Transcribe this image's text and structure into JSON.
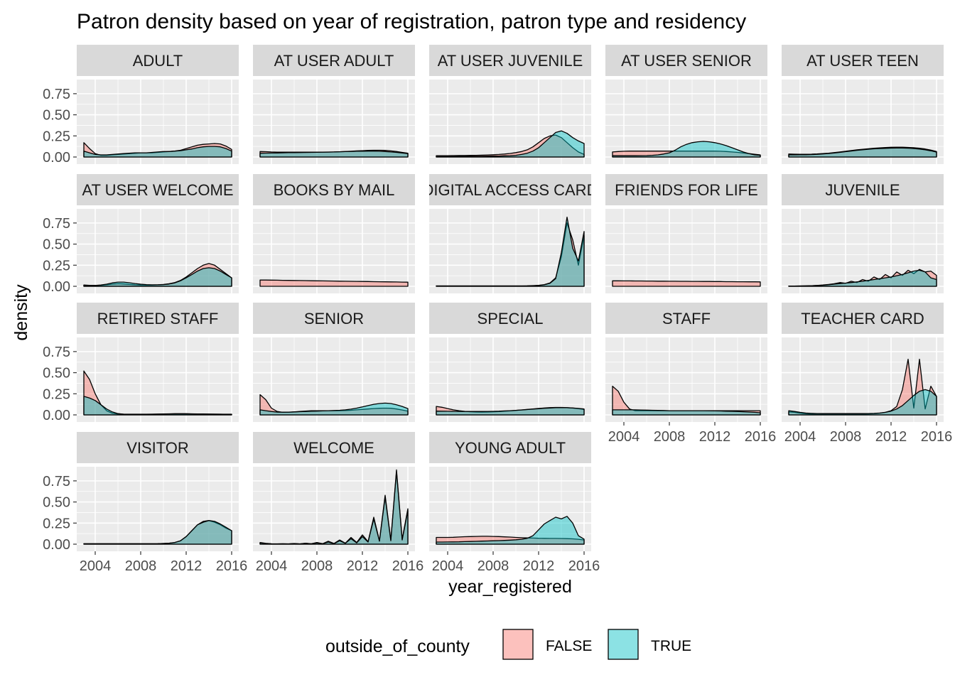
{
  "chart_data": {
    "type": "area",
    "title": "Patron density based on year of registration, patron type and residency",
    "xlabel": "year_registered",
    "ylabel": "density",
    "x_domain": [
      2003,
      2016
    ],
    "ylim": [
      0,
      0.85
    ],
    "x_ticks": [
      2004,
      2008,
      2012,
      2016
    ],
    "x_tick_labels": [
      "2004",
      "2008",
      "2012",
      "2016"
    ],
    "y_ticks": [
      0,
      0.25,
      0.5,
      0.75
    ],
    "y_tick_labels": [
      "0.00",
      "0.25",
      "0.50",
      "0.75"
    ],
    "grid": true,
    "legend": {
      "title": "outside_of_county",
      "position": "bottom",
      "entries": [
        {
          "label": "FALSE",
          "color": "#F8766D"
        },
        {
          "label": "TRUE",
          "color": "#00BFC4"
        }
      ]
    },
    "colors": {
      "FALSE": "#F8766D",
      "TRUE": "#00BFC4",
      "outline": "#000000",
      "panel": "#EBEBEB",
      "strip": "#D9D9D9"
    },
    "fill_alpha": 0.45,
    "x": [
      2003,
      2003.5,
      2004,
      2004.5,
      2005,
      2005.5,
      2006,
      2006.5,
      2007,
      2007.5,
      2008,
      2008.5,
      2009,
      2009.5,
      2010,
      2010.5,
      2011,
      2011.5,
      2012,
      2012.5,
      2013,
      2013.5,
      2014,
      2014.5,
      2015,
      2015.5,
      2016
    ],
    "panels": [
      {
        "label": "ADULT",
        "false": [
          0.17,
          0.1,
          0.04,
          0.02,
          0.02,
          0.025,
          0.03,
          0.035,
          0.04,
          0.045,
          0.05,
          0.05,
          0.05,
          0.055,
          0.06,
          0.065,
          0.07,
          0.08,
          0.1,
          0.12,
          0.14,
          0.15,
          0.155,
          0.16,
          0.155,
          0.13,
          0.09
        ],
        "true": [
          0.07,
          0.05,
          0.03,
          0.025,
          0.025,
          0.03,
          0.035,
          0.04,
          0.045,
          0.05,
          0.05,
          0.05,
          0.055,
          0.06,
          0.065,
          0.065,
          0.07,
          0.075,
          0.085,
          0.095,
          0.11,
          0.12,
          0.125,
          0.125,
          0.12,
          0.1,
          0.07
        ]
      },
      {
        "label": "AT USER ADULT",
        "false": [
          0.065,
          0.063,
          0.06,
          0.058,
          0.057,
          0.057,
          0.058,
          0.058,
          0.057,
          0.057,
          0.058,
          0.058,
          0.059,
          0.06,
          0.062,
          0.065,
          0.068,
          0.072,
          0.075,
          0.078,
          0.08,
          0.08,
          0.078,
          0.072,
          0.065,
          0.055,
          0.045
        ],
        "true": [
          0.045,
          0.046,
          0.047,
          0.048,
          0.05,
          0.051,
          0.052,
          0.053,
          0.054,
          0.055,
          0.056,
          0.057,
          0.058,
          0.06,
          0.062,
          0.064,
          0.066,
          0.068,
          0.069,
          0.07,
          0.07,
          0.068,
          0.065,
          0.06,
          0.055,
          0.048,
          0.04
        ]
      },
      {
        "label": "AT USER JUVENILE",
        "false": [
          0.015,
          0.015,
          0.016,
          0.017,
          0.018,
          0.018,
          0.019,
          0.02,
          0.022,
          0.024,
          0.027,
          0.03,
          0.035,
          0.042,
          0.052,
          0.065,
          0.085,
          0.12,
          0.17,
          0.22,
          0.25,
          0.26,
          0.23,
          0.17,
          0.11,
          0.06,
          0.03
        ],
        "true": [
          0.005,
          0.005,
          0.006,
          0.006,
          0.007,
          0.007,
          0.008,
          0.008,
          0.009,
          0.01,
          0.011,
          0.012,
          0.014,
          0.016,
          0.02,
          0.03,
          0.045,
          0.07,
          0.11,
          0.17,
          0.23,
          0.29,
          0.31,
          0.28,
          0.23,
          0.19,
          0.16
        ]
      },
      {
        "label": "AT USER SENIOR",
        "false": [
          0.06,
          0.065,
          0.068,
          0.07,
          0.07,
          0.07,
          0.07,
          0.07,
          0.07,
          0.07,
          0.07,
          0.07,
          0.07,
          0.07,
          0.07,
          0.07,
          0.07,
          0.07,
          0.07,
          0.068,
          0.065,
          0.06,
          0.055,
          0.048,
          0.04,
          0.033,
          0.025
        ],
        "true": [
          0.015,
          0.015,
          0.015,
          0.015,
          0.015,
          0.016,
          0.017,
          0.02,
          0.025,
          0.035,
          0.05,
          0.08,
          0.12,
          0.15,
          0.17,
          0.18,
          0.185,
          0.18,
          0.17,
          0.155,
          0.135,
          0.11,
          0.085,
          0.06,
          0.04,
          0.025,
          0.02
        ]
      },
      {
        "label": "AT USER TEEN",
        "false": [
          0.035,
          0.034,
          0.033,
          0.033,
          0.034,
          0.036,
          0.04,
          0.045,
          0.052,
          0.06,
          0.068,
          0.077,
          0.085,
          0.092,
          0.098,
          0.104,
          0.108,
          0.112,
          0.115,
          0.116,
          0.116,
          0.114,
          0.11,
          0.104,
          0.095,
          0.082,
          0.065
        ],
        "true": [
          0.025,
          0.025,
          0.026,
          0.027,
          0.029,
          0.032,
          0.036,
          0.041,
          0.048,
          0.055,
          0.063,
          0.071,
          0.079,
          0.086,
          0.092,
          0.097,
          0.1,
          0.103,
          0.105,
          0.106,
          0.106,
          0.104,
          0.1,
          0.094,
          0.085,
          0.073,
          0.058
        ]
      },
      {
        "label": "AT USER WELCOME",
        "false": [
          0.015,
          0.012,
          0.01,
          0.012,
          0.018,
          0.025,
          0.03,
          0.028,
          0.022,
          0.018,
          0.015,
          0.014,
          0.015,
          0.018,
          0.022,
          0.03,
          0.045,
          0.07,
          0.11,
          0.16,
          0.21,
          0.25,
          0.27,
          0.25,
          0.2,
          0.15,
          0.1
        ],
        "true": [
          0.01,
          0.01,
          0.01,
          0.015,
          0.025,
          0.04,
          0.05,
          0.05,
          0.042,
          0.033,
          0.025,
          0.02,
          0.018,
          0.018,
          0.02,
          0.027,
          0.04,
          0.065,
          0.1,
          0.14,
          0.18,
          0.21,
          0.22,
          0.21,
          0.18,
          0.14,
          0.1
        ]
      },
      {
        "label": "BOOKS BY MAIL",
        "false": [
          0.075,
          0.074,
          0.073,
          0.072,
          0.071,
          0.07,
          0.069,
          0.068,
          0.067,
          0.066,
          0.065,
          0.064,
          0.063,
          0.062,
          0.061,
          0.06,
          0.059,
          0.058,
          0.057,
          0.056,
          0.055,
          0.054,
          0.053,
          0.052,
          0.051,
          0.05,
          0.049
        ],
        "true": [
          0,
          0,
          0,
          0,
          0,
          0,
          0,
          0,
          0,
          0,
          0,
          0,
          0,
          0,
          0,
          0,
          0,
          0,
          0,
          0,
          0,
          0,
          0,
          0,
          0,
          0,
          0
        ]
      },
      {
        "label": "DIGITAL ACCESS CARD",
        "false": [
          0.005,
          0.005,
          0.005,
          0.005,
          0.005,
          0.005,
          0.005,
          0.005,
          0.005,
          0.005,
          0.005,
          0.005,
          0.005,
          0.005,
          0.005,
          0.005,
          0.006,
          0.008,
          0.012,
          0.02,
          0.04,
          0.1,
          0.35,
          0.75,
          0.55,
          0.25,
          0.6
        ],
        "true": [
          0.003,
          0.003,
          0.003,
          0.003,
          0.003,
          0.003,
          0.003,
          0.003,
          0.003,
          0.003,
          0.003,
          0.003,
          0.003,
          0.003,
          0.003,
          0.003,
          0.004,
          0.006,
          0.01,
          0.018,
          0.035,
          0.09,
          0.4,
          0.82,
          0.45,
          0.3,
          0.65
        ]
      },
      {
        "label": "FRIENDS FOR LIFE",
        "false": [
          0.065,
          0.065,
          0.064,
          0.064,
          0.063,
          0.063,
          0.062,
          0.062,
          0.061,
          0.061,
          0.06,
          0.06,
          0.059,
          0.059,
          0.058,
          0.058,
          0.057,
          0.057,
          0.056,
          0.056,
          0.055,
          0.055,
          0.054,
          0.054,
          0.053,
          0.053,
          0.052
        ],
        "true": [
          0,
          0,
          0,
          0,
          0,
          0,
          0,
          0,
          0,
          0,
          0,
          0,
          0,
          0,
          0,
          0,
          0,
          0,
          0,
          0,
          0,
          0,
          0,
          0,
          0,
          0,
          0
        ]
      },
      {
        "label": "JUVENILE",
        "false": [
          0.003,
          0.003,
          0.004,
          0.005,
          0.007,
          0.01,
          0.015,
          0.022,
          0.03,
          0.045,
          0.035,
          0.06,
          0.045,
          0.08,
          0.06,
          0.11,
          0.08,
          0.14,
          0.1,
          0.17,
          0.13,
          0.19,
          0.15,
          0.2,
          0.17,
          0.18,
          0.13
        ],
        "true": [
          0.003,
          0.003,
          0.004,
          0.005,
          0.007,
          0.01,
          0.013,
          0.018,
          0.025,
          0.032,
          0.038,
          0.045,
          0.052,
          0.06,
          0.07,
          0.08,
          0.09,
          0.1,
          0.11,
          0.125,
          0.14,
          0.16,
          0.18,
          0.19,
          0.17,
          0.1,
          0.08
        ]
      },
      {
        "label": "RETIRED STAFF",
        "false": [
          0.52,
          0.42,
          0.25,
          0.12,
          0.05,
          0.02,
          0.01,
          0.008,
          0.008,
          0.008,
          0.008,
          0.008,
          0.008,
          0.008,
          0.008,
          0.008,
          0.008,
          0.008,
          0.008,
          0.008,
          0.008,
          0.008,
          0.008,
          0.008,
          0.008,
          0.008,
          0.008
        ],
        "true": [
          0.22,
          0.2,
          0.17,
          0.12,
          0.07,
          0.035,
          0.015,
          0.008,
          0.006,
          0.006,
          0.006,
          0.007,
          0.008,
          0.01,
          0.012,
          0.013,
          0.014,
          0.014,
          0.014,
          0.013,
          0.012,
          0.011,
          0.01,
          0.009,
          0.008,
          0.006,
          0.005
        ]
      },
      {
        "label": "SENIOR",
        "false": [
          0.24,
          0.18,
          0.08,
          0.04,
          0.03,
          0.03,
          0.035,
          0.04,
          0.045,
          0.05,
          0.05,
          0.05,
          0.05,
          0.05,
          0.05,
          0.052,
          0.055,
          0.06,
          0.065,
          0.07,
          0.075,
          0.078,
          0.08,
          0.078,
          0.07,
          0.058,
          0.045
        ],
        "true": [
          0.06,
          0.05,
          0.04,
          0.033,
          0.032,
          0.033,
          0.035,
          0.038,
          0.04,
          0.043,
          0.045,
          0.047,
          0.05,
          0.052,
          0.055,
          0.06,
          0.068,
          0.08,
          0.095,
          0.11,
          0.125,
          0.135,
          0.14,
          0.135,
          0.12,
          0.1,
          0.075
        ]
      },
      {
        "label": "SPECIAL",
        "false": [
          0.1,
          0.09,
          0.075,
          0.06,
          0.05,
          0.042,
          0.037,
          0.034,
          0.033,
          0.034,
          0.036,
          0.039,
          0.043,
          0.048,
          0.053,
          0.059,
          0.065,
          0.071,
          0.077,
          0.082,
          0.086,
          0.088,
          0.088,
          0.086,
          0.081,
          0.074,
          0.065
        ],
        "true": [
          0.045,
          0.044,
          0.043,
          0.042,
          0.041,
          0.04,
          0.04,
          0.04,
          0.04,
          0.041,
          0.042,
          0.044,
          0.047,
          0.05,
          0.054,
          0.058,
          0.063,
          0.068,
          0.073,
          0.078,
          0.082,
          0.085,
          0.086,
          0.085,
          0.082,
          0.077,
          0.07
        ]
      },
      {
        "label": "STAFF",
        "false": [
          0.34,
          0.28,
          0.15,
          0.07,
          0.05,
          0.05,
          0.05,
          0.05,
          0.05,
          0.05,
          0.05,
          0.05,
          0.05,
          0.05,
          0.05,
          0.05,
          0.05,
          0.05,
          0.05,
          0.05,
          0.05,
          0.05,
          0.05,
          0.05,
          0.05,
          0.05,
          0.05
        ],
        "true": [
          0.06,
          0.06,
          0.06,
          0.06,
          0.06,
          0.058,
          0.056,
          0.055,
          0.053,
          0.052,
          0.05,
          0.05,
          0.05,
          0.05,
          0.05,
          0.05,
          0.05,
          0.049,
          0.048,
          0.046,
          0.044,
          0.042,
          0.04,
          0.037,
          0.034,
          0.03,
          0.025
        ]
      },
      {
        "label": "TEACHER CARD",
        "false": [
          0.035,
          0.03,
          0.02,
          0.013,
          0.01,
          0.01,
          0.01,
          0.01,
          0.01,
          0.01,
          0.01,
          0.01,
          0.01,
          0.01,
          0.012,
          0.015,
          0.02,
          0.03,
          0.05,
          0.1,
          0.3,
          0.66,
          0.08,
          0.66,
          0.07,
          0.34,
          0.22
        ],
        "true": [
          0.05,
          0.04,
          0.03,
          0.022,
          0.018,
          0.016,
          0.015,
          0.015,
          0.015,
          0.015,
          0.015,
          0.015,
          0.015,
          0.015,
          0.016,
          0.018,
          0.022,
          0.03,
          0.045,
          0.07,
          0.11,
          0.17,
          0.23,
          0.28,
          0.3,
          0.28,
          0.22
        ]
      },
      {
        "label": "VISITOR",
        "false": [
          0.005,
          0.005,
          0.005,
          0.005,
          0.005,
          0.005,
          0.005,
          0.005,
          0.005,
          0.005,
          0.005,
          0.005,
          0.005,
          0.006,
          0.008,
          0.012,
          0.02,
          0.04,
          0.09,
          0.16,
          0.23,
          0.27,
          0.28,
          0.26,
          0.23,
          0.19,
          0.16
        ],
        "true": [
          0.005,
          0.005,
          0.005,
          0.005,
          0.005,
          0.005,
          0.005,
          0.005,
          0.005,
          0.005,
          0.005,
          0.005,
          0.005,
          0.006,
          0.008,
          0.012,
          0.02,
          0.04,
          0.09,
          0.16,
          0.23,
          0.26,
          0.28,
          0.27,
          0.24,
          0.2,
          0.16
        ]
      },
      {
        "label": "WELCOME",
        "false": [
          0.02,
          0.01,
          0.005,
          0.004,
          0.005,
          0.004,
          0.008,
          0.004,
          0.012,
          0.005,
          0.02,
          0.006,
          0.035,
          0.008,
          0.05,
          0.012,
          0.08,
          0.02,
          0.11,
          0.03,
          0.32,
          0.04,
          0.58,
          0.05,
          0.88,
          0.06,
          0.42
        ],
        "true": [
          0.015,
          0.008,
          0.004,
          0.003,
          0.004,
          0.003,
          0.006,
          0.003,
          0.01,
          0.004,
          0.015,
          0.005,
          0.025,
          0.006,
          0.04,
          0.01,
          0.065,
          0.015,
          0.09,
          0.025,
          0.3,
          0.035,
          0.56,
          0.04,
          0.86,
          0.05,
          0.4
        ]
      },
      {
        "label": "YOUNG ADULT",
        "false": [
          0.08,
          0.08,
          0.08,
          0.082,
          0.085,
          0.088,
          0.09,
          0.092,
          0.093,
          0.093,
          0.092,
          0.09,
          0.087,
          0.084,
          0.08,
          0.077,
          0.074,
          0.072,
          0.07,
          0.069,
          0.068,
          0.068,
          0.067,
          0.066,
          0.063,
          0.058,
          0.05
        ],
        "true": [
          0.025,
          0.025,
          0.026,
          0.027,
          0.028,
          0.03,
          0.032,
          0.034,
          0.036,
          0.038,
          0.04,
          0.042,
          0.045,
          0.048,
          0.052,
          0.058,
          0.07,
          0.1,
          0.17,
          0.24,
          0.28,
          0.32,
          0.3,
          0.33,
          0.25,
          0.1,
          0.06
        ]
      }
    ]
  }
}
